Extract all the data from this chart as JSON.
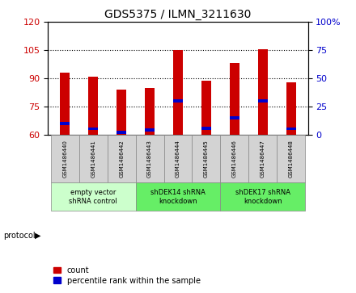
{
  "title": "GDS5375 / ILMN_3211630",
  "samples": [
    "GSM1486440",
    "GSM1486441",
    "GSM1486442",
    "GSM1486443",
    "GSM1486444",
    "GSM1486445",
    "GSM1486446",
    "GSM1486447",
    "GSM1486448"
  ],
  "count_values": [
    93.0,
    91.0,
    84.0,
    85.0,
    105.0,
    88.5,
    98.0,
    105.5,
    88.0
  ],
  "percentile_values": [
    10.0,
    5.0,
    2.0,
    4.0,
    30.0,
    5.5,
    15.0,
    30.0,
    5.0
  ],
  "ylim_left": [
    60,
    120
  ],
  "ylim_right": [
    0,
    100
  ],
  "yticks_left": [
    60,
    75,
    90,
    105,
    120
  ],
  "yticks_right": [
    0,
    25,
    50,
    75,
    100
  ],
  "bar_width": 0.35,
  "count_color": "#cc0000",
  "percentile_color": "#0000cc",
  "protocol_groups": [
    {
      "label": "empty vector\nshRNA control",
      "start": 0,
      "end": 3,
      "color": "#ccffcc"
    },
    {
      "label": "shDEK14 shRNA\nknockdown",
      "start": 3,
      "end": 6,
      "color": "#66ee66"
    },
    {
      "label": "shDEK17 shRNA\nknockdown",
      "start": 6,
      "end": 9,
      "color": "#66ee66"
    }
  ],
  "legend_count_label": "count",
  "legend_percentile_label": "percentile rank within the sample",
  "protocol_label": "protocol",
  "background_color": "#ffffff",
  "sample_box_color": "#d3d3d3"
}
